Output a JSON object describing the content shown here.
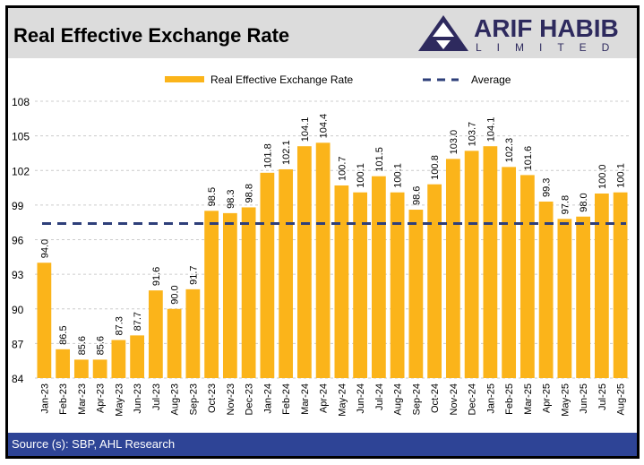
{
  "header": {
    "title": "Real Effective Exchange Rate",
    "logo_main": "ARIF HABIB",
    "logo_sub": "LIMITED"
  },
  "footer": {
    "source": "Source (s): SBP, AHL Research"
  },
  "colors": {
    "bar": "#fbb41a",
    "average": "#2e3f7a",
    "footer": "#2e4496"
  },
  "chart_data": {
    "type": "bar",
    "title": "Real Effective Exchange Rate",
    "legend": [
      "Real Effective Exchange Rate",
      "Average"
    ],
    "legend_position": "top-center",
    "categories": [
      "Jan-23",
      "Feb-23",
      "Mar-23",
      "Apr-23",
      "May-23",
      "Jun-23",
      "Jul-23",
      "Aug-23",
      "Sep-23",
      "Oct-23",
      "Nov-23",
      "Dec-23",
      "Jan-24",
      "Feb-24",
      "Mar-24",
      "Apr-24",
      "May-24",
      "Jun-24",
      "Jul-24",
      "Aug-24",
      "Sep-24",
      "Oct-24",
      "Nov-24",
      "Dec-24",
      "Jan-25",
      "Feb-25",
      "Mar-25",
      "Apr-25",
      "May-25",
      "Jun-25",
      "Jul-25",
      "Aug-25"
    ],
    "values": [
      94.0,
      86.5,
      85.6,
      85.6,
      87.3,
      87.7,
      91.6,
      90.0,
      91.7,
      98.5,
      98.3,
      98.8,
      101.8,
      102.1,
      104.1,
      104.4,
      100.7,
      100.1,
      101.5,
      100.1,
      98.6,
      100.8,
      103.0,
      103.7,
      104.1,
      102.3,
      101.6,
      99.3,
      97.8,
      98.0,
      100.0,
      100.1
    ],
    "average": 97.4,
    "ylim": [
      84,
      108
    ],
    "yticks": [
      84,
      87,
      90,
      93,
      96,
      99,
      102,
      105,
      108
    ],
    "grid": true
  }
}
